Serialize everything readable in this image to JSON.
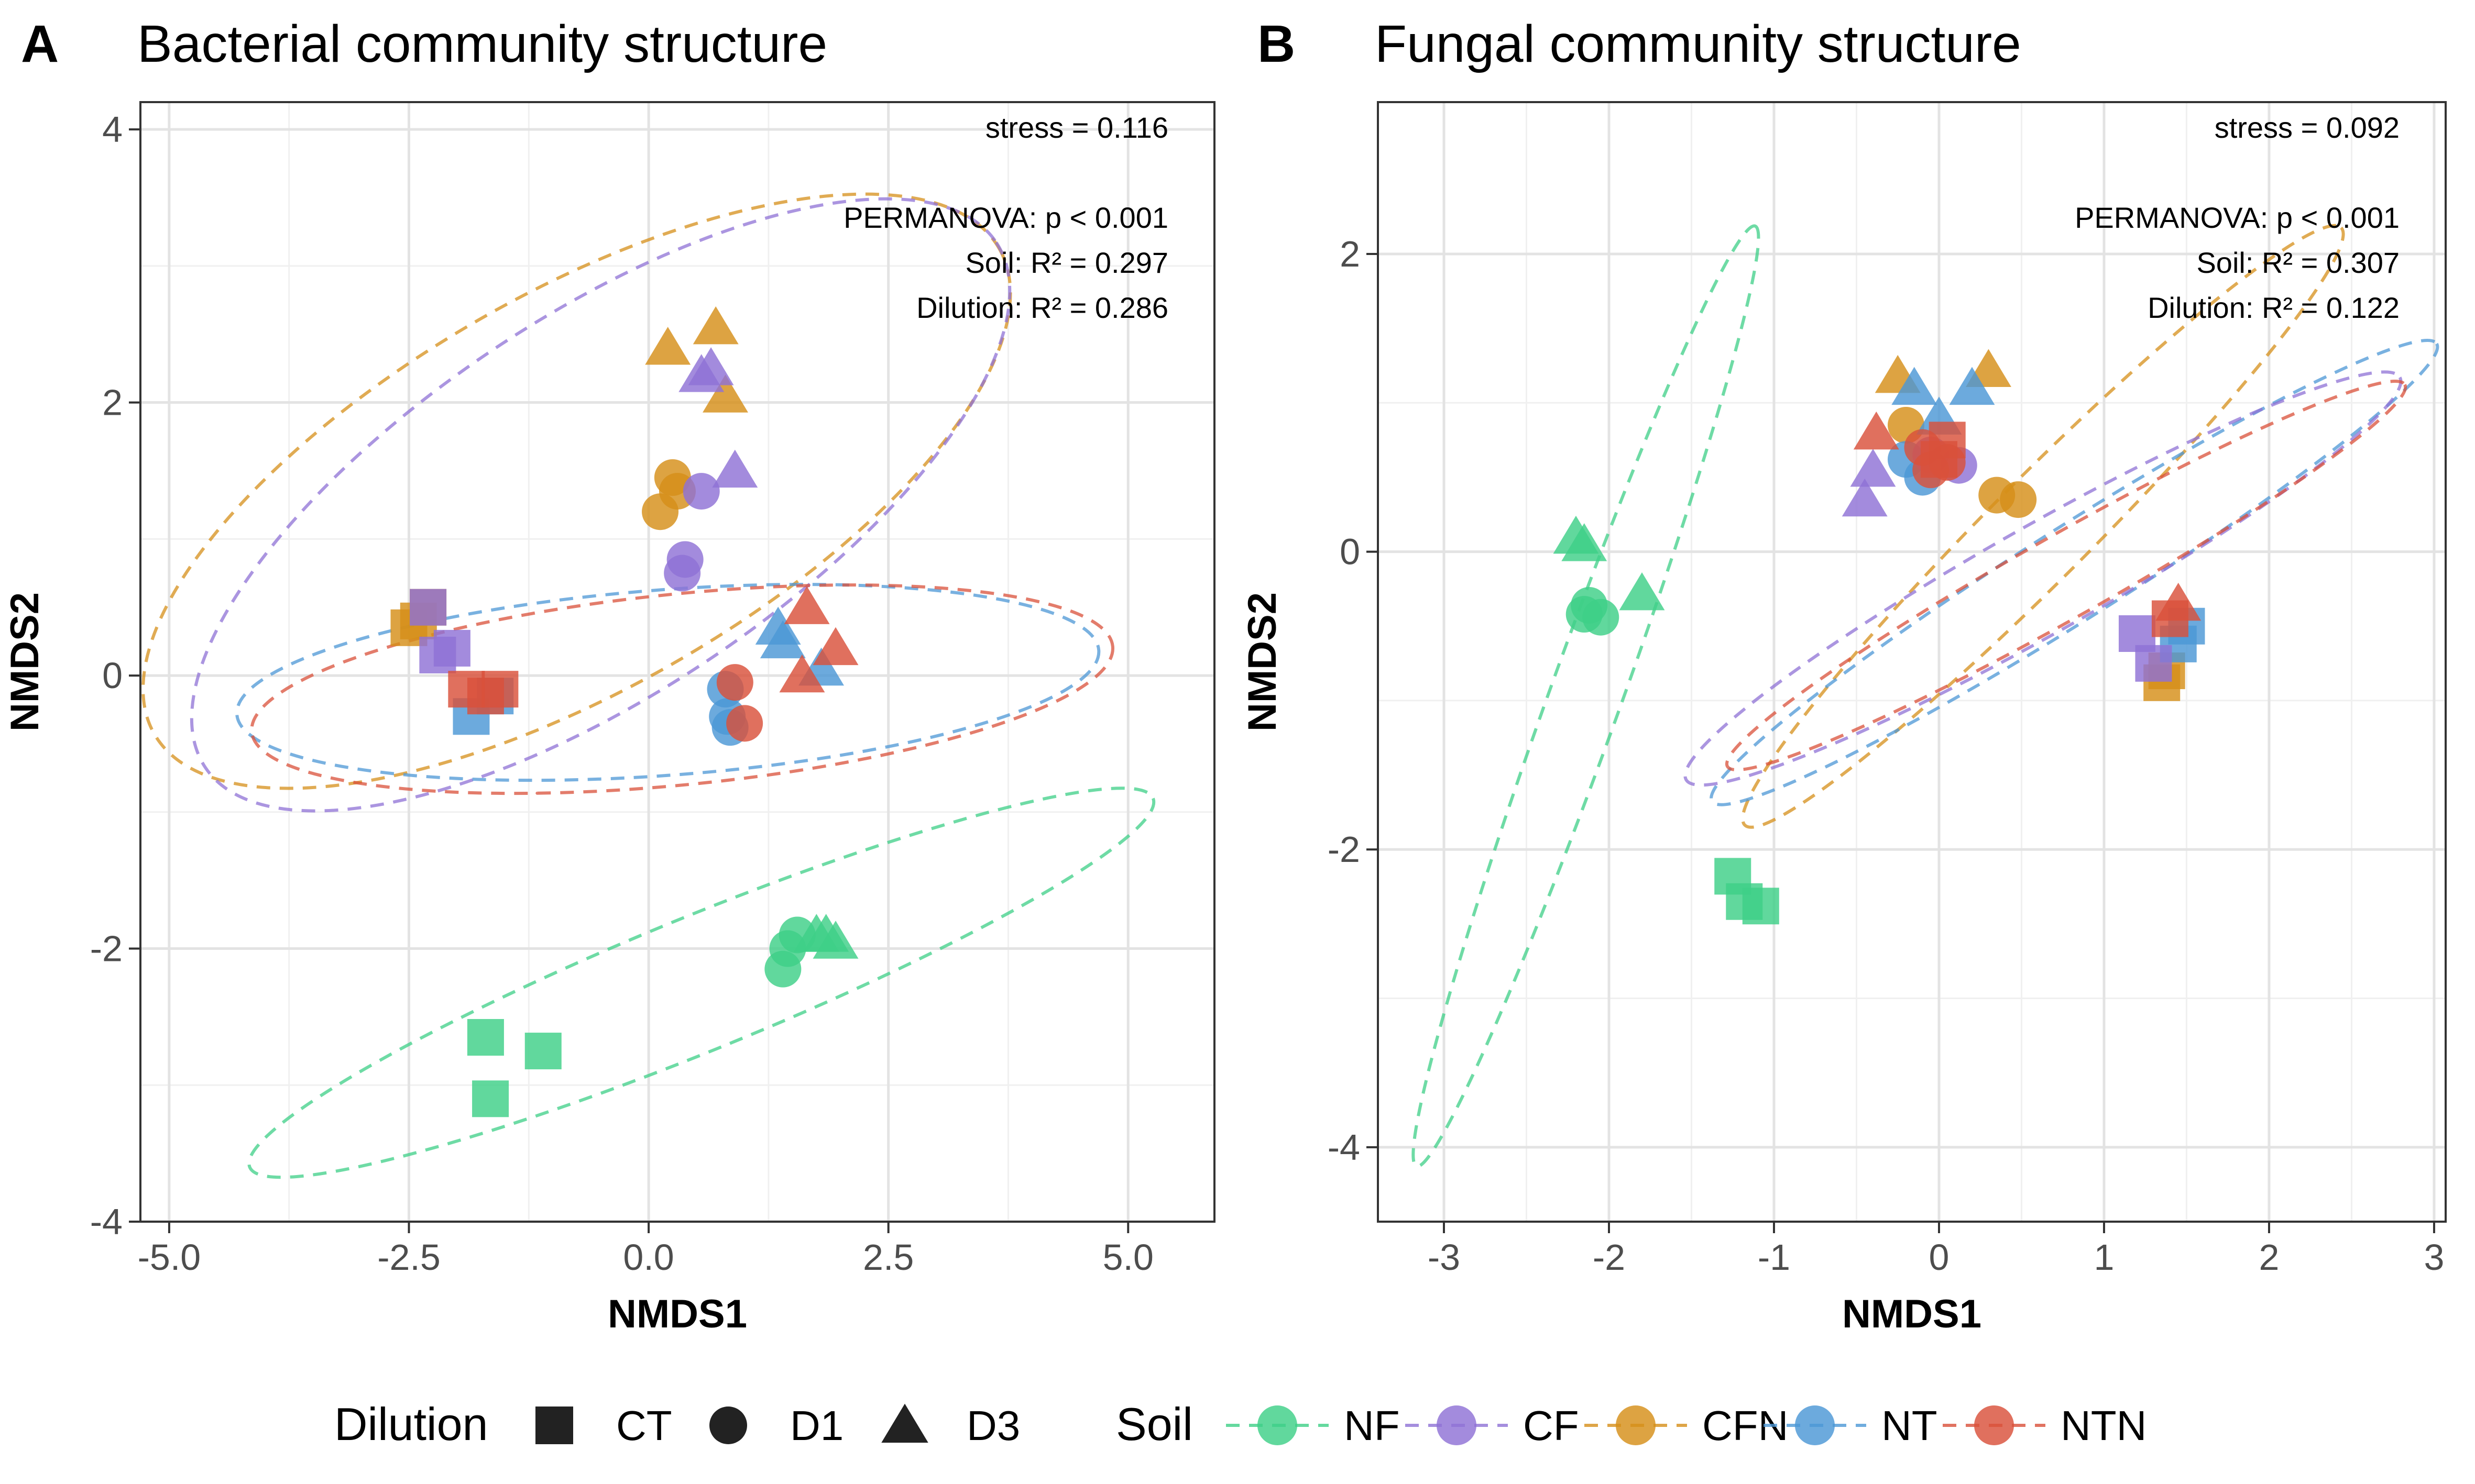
{
  "colors": {
    "NF": "#3ECF87",
    "CF": "#8F72D6",
    "CFN": "#D68F19",
    "NT": "#4C97D6",
    "NTN": "#D9503A"
  },
  "chart_data": [
    {
      "type": "scatter",
      "panel_letter": "A",
      "title": "Bacterial community structure",
      "xlabel": "NMDS1",
      "ylabel": "NMDS2",
      "xlim": [
        -5.3,
        5.9
      ],
      "ylim": [
        -4.0,
        4.2
      ],
      "xticks": [
        -5.0,
        -2.5,
        0.0,
        2.5,
        5.0
      ],
      "xtick_labels": [
        "-5.0",
        "-2.5",
        "0.0",
        "2.5",
        "5.0"
      ],
      "yticks": [
        -4,
        -2,
        0,
        2,
        4
      ],
      "ytick_labels": [
        "-4",
        "-2",
        "0",
        "2",
        "4"
      ],
      "grid": true,
      "annotations": [
        "stress = 0.116",
        "",
        "PERMANOVA: p < 0.001",
        "Soil: R² = 0.297",
        "Dilution: R² = 0.286"
      ],
      "points": [
        {
          "soil": "CFN",
          "dilution": "CT",
          "x": -2.5,
          "y": 0.35
        },
        {
          "soil": "CFN",
          "dilution": "CT",
          "x": -2.3,
          "y": 0.5
        },
        {
          "soil": "CFN",
          "dilution": "CT",
          "x": -2.4,
          "y": 0.4
        },
        {
          "soil": "CF",
          "dilution": "CT",
          "x": -2.3,
          "y": 0.5
        },
        {
          "soil": "CF",
          "dilution": "CT",
          "x": -2.2,
          "y": 0.15
        },
        {
          "soil": "CF",
          "dilution": "CT",
          "x": -2.05,
          "y": 0.2
        },
        {
          "soil": "NT",
          "dilution": "CT",
          "x": -1.85,
          "y": -0.3
        },
        {
          "soil": "NT",
          "dilution": "CT",
          "x": -1.6,
          "y": -0.15
        },
        {
          "soil": "NTN",
          "dilution": "CT",
          "x": -1.9,
          "y": -0.1
        },
        {
          "soil": "NTN",
          "dilution": "CT",
          "x": -1.7,
          "y": -0.15
        },
        {
          "soil": "NTN",
          "dilution": "CT",
          "x": -1.55,
          "y": -0.1
        },
        {
          "soil": "NF",
          "dilution": "CT",
          "x": -1.7,
          "y": -2.65
        },
        {
          "soil": "NF",
          "dilution": "CT",
          "x": -1.1,
          "y": -2.75
        },
        {
          "soil": "NF",
          "dilution": "CT",
          "x": -1.65,
          "y": -3.1
        },
        {
          "soil": "CFN",
          "dilution": "D1",
          "x": 0.25,
          "y": 1.45
        },
        {
          "soil": "CFN",
          "dilution": "D1",
          "x": 0.3,
          "y": 1.35
        },
        {
          "soil": "CFN",
          "dilution": "D1",
          "x": 0.12,
          "y": 1.2
        },
        {
          "soil": "CF",
          "dilution": "D1",
          "x": 0.55,
          "y": 1.35
        },
        {
          "soil": "CF",
          "dilution": "D1",
          "x": 0.38,
          "y": 0.85
        },
        {
          "soil": "CF",
          "dilution": "D1",
          "x": 0.35,
          "y": 0.75
        },
        {
          "soil": "NT",
          "dilution": "D1",
          "x": 0.8,
          "y": -0.1
        },
        {
          "soil": "NT",
          "dilution": "D1",
          "x": 0.82,
          "y": -0.3
        },
        {
          "soil": "NT",
          "dilution": "D1",
          "x": 0.85,
          "y": -0.38
        },
        {
          "soil": "NTN",
          "dilution": "D1",
          "x": 0.9,
          "y": -0.05
        },
        {
          "soil": "NTN",
          "dilution": "D1",
          "x": 1.0,
          "y": -0.35
        },
        {
          "soil": "NF",
          "dilution": "D1",
          "x": 1.55,
          "y": -1.9
        },
        {
          "soil": "NF",
          "dilution": "D1",
          "x": 1.45,
          "y": -2.0
        },
        {
          "soil": "NF",
          "dilution": "D1",
          "x": 1.4,
          "y": -2.15
        },
        {
          "soil": "CFN",
          "dilution": "D3",
          "x": 0.2,
          "y": 2.4
        },
        {
          "soil": "CFN",
          "dilution": "D3",
          "x": 0.7,
          "y": 2.55
        },
        {
          "soil": "CFN",
          "dilution": "D3",
          "x": 0.8,
          "y": 2.05
        },
        {
          "soil": "CF",
          "dilution": "D3",
          "x": 0.55,
          "y": 2.2
        },
        {
          "soil": "CF",
          "dilution": "D3",
          "x": 0.65,
          "y": 2.25
        },
        {
          "soil": "CF",
          "dilution": "D3",
          "x": 0.9,
          "y": 1.5
        },
        {
          "soil": "NT",
          "dilution": "D3",
          "x": 1.35,
          "y": 0.35
        },
        {
          "soil": "NT",
          "dilution": "D3",
          "x": 1.4,
          "y": 0.25
        },
        {
          "soil": "NT",
          "dilution": "D3",
          "x": 1.8,
          "y": 0.05
        },
        {
          "soil": "NTN",
          "dilution": "D3",
          "x": 1.65,
          "y": 0.5
        },
        {
          "soil": "NTN",
          "dilution": "D3",
          "x": 1.95,
          "y": 0.2
        },
        {
          "soil": "NTN",
          "dilution": "D3",
          "x": 1.6,
          "y": 0.0
        },
        {
          "soil": "NF",
          "dilution": "D3",
          "x": 1.75,
          "y": -1.9
        },
        {
          "soil": "NF",
          "dilution": "D3",
          "x": 1.95,
          "y": -1.95
        },
        {
          "soil": "NF",
          "dilution": "D3",
          "x": 1.85,
          "y": -1.9
        }
      ],
      "ellipses": [
        {
          "soil": "CFN",
          "cx": -0.75,
          "cy": 1.35,
          "rx": 4.75,
          "ry": 1.5,
          "angle": 22
        },
        {
          "soil": "CF",
          "cx": -0.5,
          "cy": 1.25,
          "rx": 4.55,
          "ry": 1.45,
          "angle": 25
        },
        {
          "soil": "NT",
          "cx": 0.2,
          "cy": -0.05,
          "rx": 4.5,
          "ry": 0.68,
          "angle": 3
        },
        {
          "soil": "NTN",
          "cx": 0.35,
          "cy": -0.1,
          "rx": 4.5,
          "ry": 0.7,
          "angle": 4
        },
        {
          "soil": "NF",
          "cx": 0.55,
          "cy": -2.25,
          "rx": 4.9,
          "ry": 0.5,
          "angle": 16
        }
      ]
    },
    {
      "type": "scatter",
      "panel_letter": "B",
      "title": "Fungal community structure",
      "xlabel": "NMDS1",
      "ylabel": "NMDS2",
      "xlim": [
        -3.4,
        3.07
      ],
      "ylim": [
        -4.5,
        3.02
      ],
      "xticks": [
        -3,
        -2,
        -1,
        0,
        1,
        2,
        3
      ],
      "xtick_labels": [
        "-3",
        "-2",
        "-1",
        "0",
        "1",
        "2",
        "3"
      ],
      "yticks": [
        -4,
        -2,
        0,
        2
      ],
      "ytick_labels": [
        "-4",
        "-2",
        "0",
        "2"
      ],
      "grid": true,
      "annotations": [
        "stress = 0.092",
        "",
        "PERMANOVA: p < 0.001",
        "Soil: R² = 0.307",
        "Dilution: R² = 0.122"
      ],
      "points": [
        {
          "soil": "NF",
          "dilution": "D3",
          "x": -2.2,
          "y": 0.1
        },
        {
          "soil": "NF",
          "dilution": "D3",
          "x": -2.15,
          "y": 0.05
        },
        {
          "soil": "NF",
          "dilution": "D3",
          "x": -1.8,
          "y": -0.28
        },
        {
          "soil": "NF",
          "dilution": "D1",
          "x": -2.12,
          "y": -0.36
        },
        {
          "soil": "NF",
          "dilution": "D1",
          "x": -2.05,
          "y": -0.44
        },
        {
          "soil": "NF",
          "dilution": "D1",
          "x": -2.15,
          "y": -0.42
        },
        {
          "soil": "NF",
          "dilution": "CT",
          "x": -1.25,
          "y": -2.18
        },
        {
          "soil": "NF",
          "dilution": "CT",
          "x": -1.18,
          "y": -2.35
        },
        {
          "soil": "NF",
          "dilution": "CT",
          "x": -1.08,
          "y": -2.38
        },
        {
          "soil": "CFN",
          "dilution": "D3",
          "x": -0.25,
          "y": 1.18
        },
        {
          "soil": "CFN",
          "dilution": "D3",
          "x": 0.3,
          "y": 1.22
        },
        {
          "soil": "CFN",
          "dilution": "D1",
          "x": -0.2,
          "y": 0.85
        },
        {
          "soil": "CFN",
          "dilution": "D1",
          "x": 0.35,
          "y": 0.38
        },
        {
          "soil": "CFN",
          "dilution": "D1",
          "x": 0.48,
          "y": 0.35
        },
        {
          "soil": "CFN",
          "dilution": "CT",
          "x": 1.35,
          "y": -0.88
        },
        {
          "soil": "CFN",
          "dilution": "CT",
          "x": 1.38,
          "y": -0.8
        },
        {
          "soil": "NT",
          "dilution": "D3",
          "x": -0.15,
          "y": 1.1
        },
        {
          "soil": "NT",
          "dilution": "D3",
          "x": 0.2,
          "y": 1.1
        },
        {
          "soil": "NT",
          "dilution": "D3",
          "x": 0.0,
          "y": 0.9
        },
        {
          "soil": "NT",
          "dilution": "D1",
          "x": -0.2,
          "y": 0.62
        },
        {
          "soil": "NT",
          "dilution": "D1",
          "x": -0.1,
          "y": 0.5
        },
        {
          "soil": "NT",
          "dilution": "CT",
          "x": 1.5,
          "y": -0.5
        },
        {
          "soil": "NT",
          "dilution": "CT",
          "x": 1.45,
          "y": -0.62
        },
        {
          "soil": "CF",
          "dilution": "D3",
          "x": -0.45,
          "y": 0.35
        },
        {
          "soil": "CF",
          "dilution": "D3",
          "x": -0.4,
          "y": 0.55
        },
        {
          "soil": "CF",
          "dilution": "D1",
          "x": 0.12,
          "y": 0.58
        },
        {
          "soil": "CF",
          "dilution": "D1",
          "x": -0.05,
          "y": 0.65
        },
        {
          "soil": "CF",
          "dilution": "CT",
          "x": 1.2,
          "y": -0.55
        },
        {
          "soil": "CF",
          "dilution": "CT",
          "x": 1.3,
          "y": -0.75
        },
        {
          "soil": "NTN",
          "dilution": "D3",
          "x": -0.38,
          "y": 0.8
        },
        {
          "soil": "NTN",
          "dilution": "D3",
          "x": 1.45,
          "y": -0.35
        },
        {
          "soil": "NTN",
          "dilution": "D1",
          "x": -0.05,
          "y": 0.55
        },
        {
          "soil": "NTN",
          "dilution": "D1",
          "x": 0.05,
          "y": 0.6
        },
        {
          "soil": "NTN",
          "dilution": "D1",
          "x": -0.1,
          "y": 0.7
        },
        {
          "soil": "NTN",
          "dilution": "CT",
          "x": 0.05,
          "y": 0.75
        },
        {
          "soil": "NTN",
          "dilution": "CT",
          "x": 0.0,
          "y": 0.62
        },
        {
          "soil": "NTN",
          "dilution": "CT",
          "x": 1.4,
          "y": -0.45
        }
      ],
      "ellipses": [
        {
          "soil": "NF",
          "cx": -2.14,
          "cy": -0.97,
          "rx": 3.32,
          "ry": 0.22,
          "angle": 72
        },
        {
          "soil": "CFN",
          "cx": 0.63,
          "cy": 0.17,
          "rx": 2.7,
          "ry": 0.32,
          "angle": 48
        },
        {
          "soil": "NT",
          "cx": 0.82,
          "cy": -0.14,
          "rx": 2.68,
          "ry": 0.3,
          "angle": 35
        },
        {
          "soil": "CF",
          "cx": 0.63,
          "cy": -0.18,
          "rx": 2.55,
          "ry": 0.35,
          "angle": 32
        },
        {
          "soil": "NTN",
          "cx": 0.77,
          "cy": -0.16,
          "rx": 2.42,
          "ry": 0.27,
          "angle": 32
        }
      ]
    }
  ],
  "legend": {
    "dilution_title": "Dilution",
    "dilution_items": [
      {
        "key": "CT",
        "label": "CT",
        "shape": "square"
      },
      {
        "key": "D1",
        "label": "D1",
        "shape": "circle"
      },
      {
        "key": "D3",
        "label": "D3",
        "shape": "triangle"
      }
    ],
    "soil_title": "Soil",
    "soil_items": [
      {
        "key": "NF",
        "label": "NF"
      },
      {
        "key": "CF",
        "label": "CF"
      },
      {
        "key": "CFN",
        "label": "CFN"
      },
      {
        "key": "NT",
        "label": "NT"
      },
      {
        "key": "NTN",
        "label": "NTN"
      }
    ]
  }
}
